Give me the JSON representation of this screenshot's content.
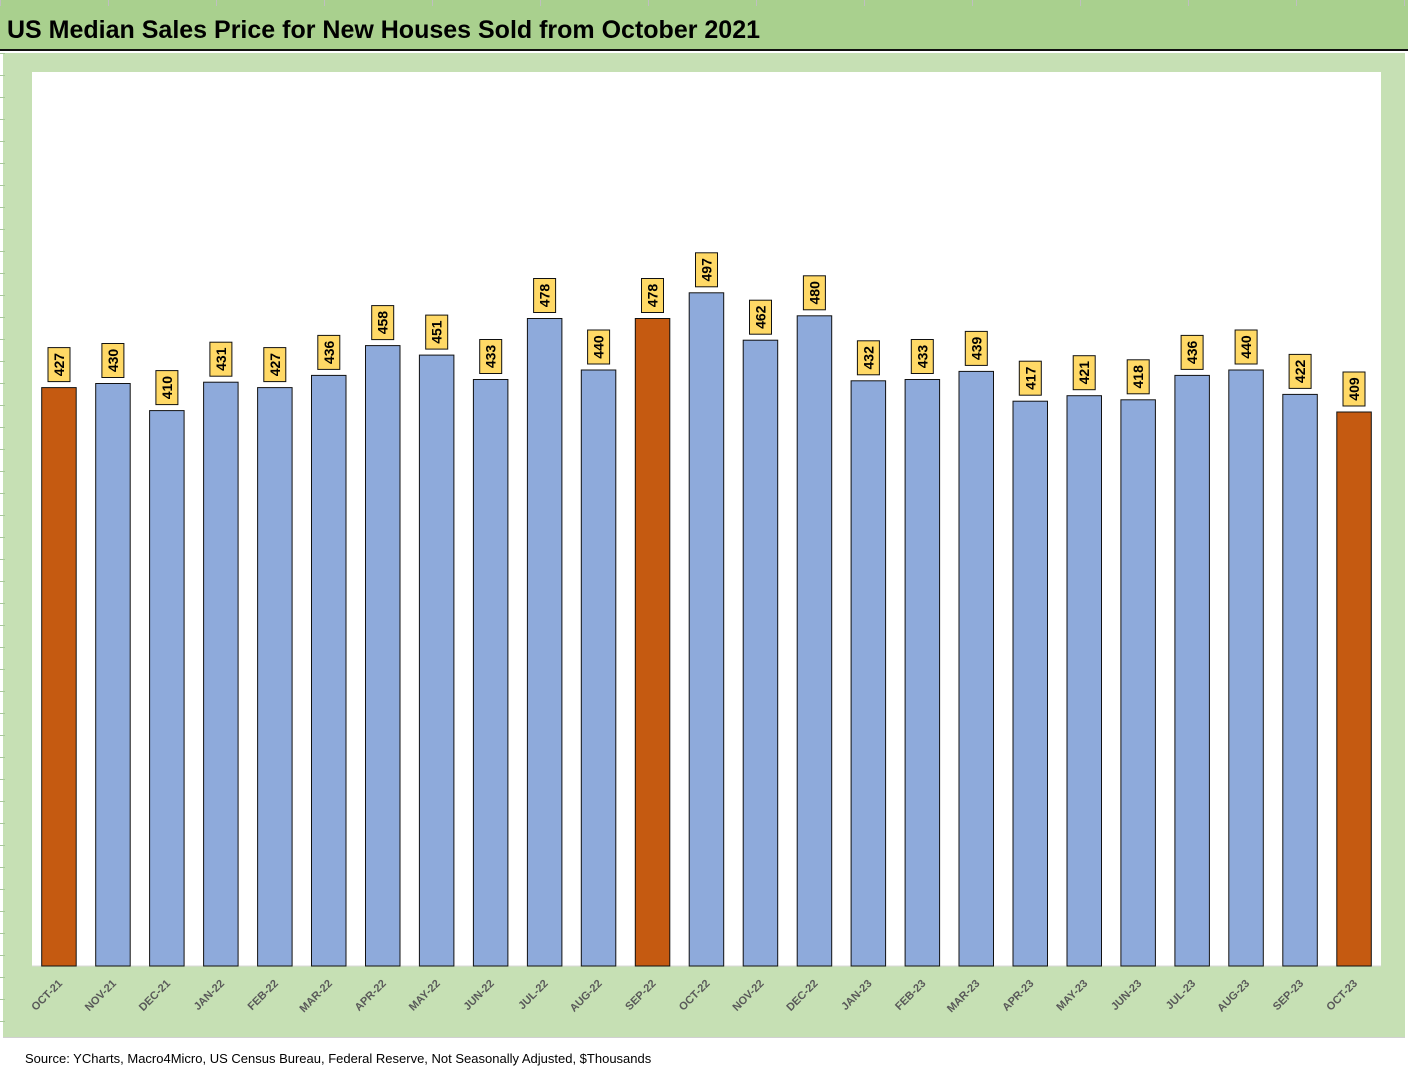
{
  "title": "US Median Sales Price for New Houses Sold from October 2021",
  "source": "Source: YCharts, Macro4Micro, US Census Bureau, Federal Reserve, Not Seasonally Adjusted, $Thousands",
  "colors": {
    "default_bar": "#8eaadb",
    "highlight_bar": "#c55a11",
    "label_bg": "#ffd966",
    "frame": "#c6e0b4",
    "title_bar": "#a9d08e"
  },
  "chart_data": {
    "type": "bar",
    "categories": [
      "OCT-21",
      "NOV-21",
      "DEC-21",
      "JAN-22",
      "FEB-22",
      "MAR-22",
      "APR-22",
      "MAY-22",
      "JUN-22",
      "JUL-22",
      "AUG-22",
      "SEP-22",
      "OCT-22",
      "NOV-22",
      "DEC-22",
      "JAN-23",
      "FEB-23",
      "MAR-23",
      "APR-23",
      "MAY-23",
      "JUN-23",
      "JUL-23",
      "AUG-23",
      "SEP-23",
      "OCT-23"
    ],
    "values": [
      427,
      430,
      410,
      431,
      427,
      436,
      458,
      451,
      433,
      478,
      440,
      478,
      497,
      462,
      480,
      432,
      433,
      439,
      417,
      421,
      418,
      436,
      440,
      422,
      409
    ],
    "highlighted": [
      "OCT-21",
      "SEP-22",
      "OCT-23"
    ],
    "title": "US Median Sales Price for New Houses Sold from October 2021",
    "xlabel": "",
    "ylabel": "",
    "ylim": [
      0,
      660
    ],
    "grid": false,
    "data_labels": true
  }
}
